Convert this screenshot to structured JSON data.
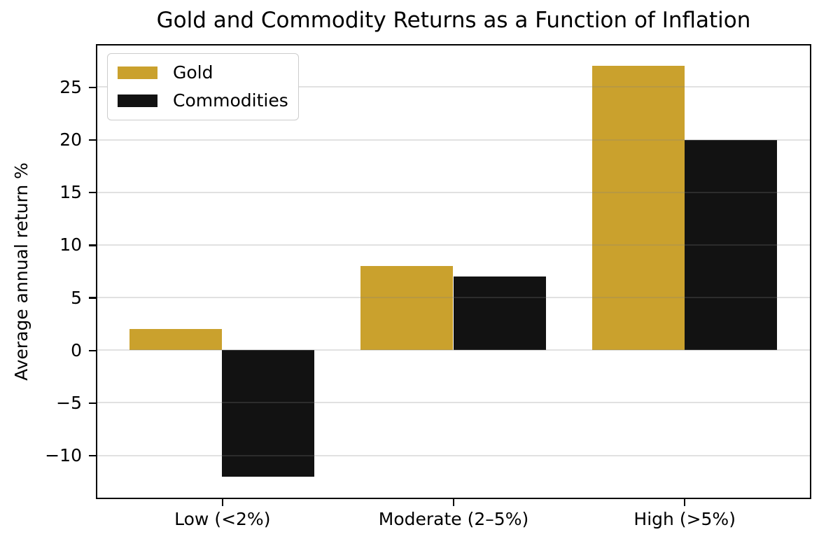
{
  "chart_data": {
    "type": "bar",
    "title": "Gold and Commodity Returns as a Function of Inflation",
    "xlabel": "",
    "ylabel": "Average annual return %",
    "categories": [
      "Low (<2%)",
      "Moderate (2–5%)",
      "High (>5%)"
    ],
    "series": [
      {
        "name": "Gold",
        "color": "#CAA12D",
        "values": [
          2,
          8,
          27
        ]
      },
      {
        "name": "Commodities",
        "color": "#121212",
        "values": [
          -12,
          7,
          20
        ]
      }
    ],
    "yticks": [
      25,
      20,
      15,
      10,
      5,
      0,
      -5,
      -10
    ],
    "ylim": [
      -13.95,
      28.95
    ],
    "xlim": [
      -0.54,
      2.54
    ],
    "bar_width": 0.4,
    "grid": "horizontal-only",
    "legend_position": "upper-left"
  },
  "colors": {
    "background": "#ffffff",
    "spine": "#000000",
    "gridline": "rgba(128,128,128,0.24)",
    "gold_series": "#CAA12D",
    "commodities_series": "#121212",
    "legend_border": "#cccccc"
  }
}
